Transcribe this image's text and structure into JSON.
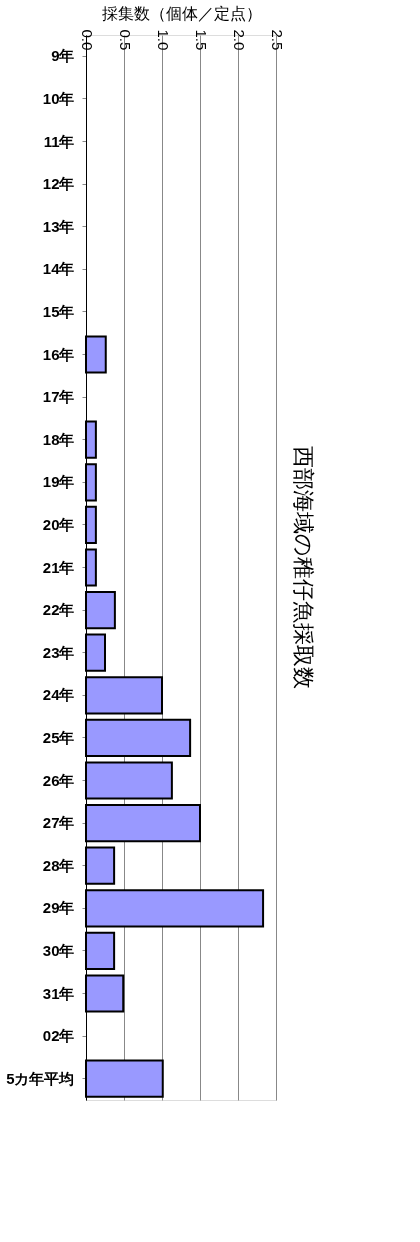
{
  "chart_data": {
    "type": "bar",
    "orientation": "horizontal",
    "title": "西部海域の稚仔魚採取数",
    "xlabel": "採集数（個体／定点）",
    "categories": [
      "9年",
      "10年",
      "11年",
      "12年",
      "13年",
      "14年",
      "15年",
      "16年",
      "17年",
      "18年",
      "19年",
      "20年",
      "21年",
      "22年",
      "23年",
      "24年",
      "25年",
      "26年",
      "27年",
      "28年",
      "29年",
      "30年",
      "31年",
      "02年",
      "5カ年平均"
    ],
    "values": [
      null,
      null,
      null,
      null,
      null,
      null,
      null,
      0.26,
      null,
      0.13,
      0.13,
      0.13,
      0.13,
      0.38,
      0.25,
      1.0,
      1.37,
      1.13,
      1.5,
      0.37,
      2.33,
      0.37,
      0.49,
      null,
      1.01
    ],
    "color": "#9999ff",
    "xlim": [
      0,
      2.5
    ],
    "xticks": [
      {
        "value": 0,
        "label": "0.0"
      },
      {
        "value": 0.5,
        "label": "0.5"
      },
      {
        "value": 1,
        "label": "1.0"
      },
      {
        "value": 1.5,
        "label": "1.5"
      },
      {
        "value": 2,
        "label": "2.0"
      },
      {
        "value": 2.5,
        "label": "2.5"
      }
    ],
    "grid": "x"
  }
}
